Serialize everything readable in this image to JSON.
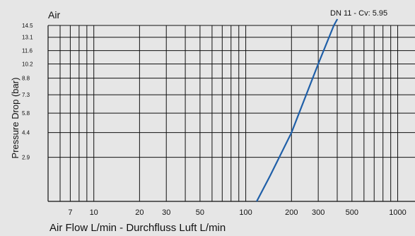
{
  "chart_data": {
    "type": "line",
    "title": "Air",
    "xlabel": "Air Flow L/min - Durchfluss Luft L/min",
    "ylabel": "Pressure Drop (bar)",
    "x_scale": "log",
    "xlim": [
      5,
      1300
    ],
    "ylim": [
      1,
      14.5
    ],
    "grid": true,
    "x_ticks": [
      7,
      10,
      20,
      30,
      50,
      100,
      200,
      300,
      500,
      1000
    ],
    "x_tick_labels": [
      "7",
      "10",
      "20",
      "30",
      "50",
      "100",
      "200",
      "300",
      "500",
      "1000"
    ],
    "x_minor_grid": [
      6,
      8,
      9,
      40,
      60,
      70,
      80,
      90,
      400,
      600,
      700,
      800,
      900
    ],
    "y_ticks": [
      14.5,
      13.1,
      11.6,
      10.2,
      8.8,
      7.3,
      5.8,
      4.4,
      2.9
    ],
    "y_tick_labels": [
      "14.5",
      "13.1",
      "11.6",
      "10.2",
      "8.8",
      "7.3",
      "5.8",
      "4.4",
      "2.9"
    ],
    "series": [
      {
        "name": "DN 11 - Cv: 5.95",
        "color": "#1f5fa8",
        "x": [
          118,
          145,
          200,
          300,
          380
        ],
        "y": [
          1,
          2.0,
          4.4,
          10.2,
          14.5
        ]
      }
    ],
    "annotation": "DN 11 - Cv: 5.95"
  }
}
